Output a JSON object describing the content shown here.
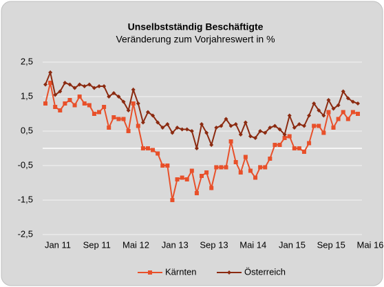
{
  "chart_data": {
    "type": "line",
    "title": "Unselbstständig Beschäftigte",
    "subtitle": "Veränderung zum Vorjahreswert in %",
    "categories": [
      "Jan 11",
      null,
      null,
      null,
      null,
      null,
      null,
      null,
      "Sep 11",
      null,
      null,
      null,
      null,
      null,
      null,
      null,
      "Mai 12",
      null,
      null,
      null,
      null,
      null,
      null,
      null,
      "Jan 13",
      null,
      null,
      null,
      null,
      null,
      null,
      null,
      "Sep 13",
      null,
      null,
      null,
      null,
      null,
      null,
      null,
      "Mai 14",
      null,
      null,
      null,
      null,
      null,
      null,
      null,
      "Jan 15",
      null,
      null,
      null,
      null,
      null,
      null,
      null,
      "Sep 15",
      null,
      null,
      null,
      null,
      null,
      null,
      null,
      "Mai 16"
    ],
    "series": [
      {
        "name": "Kärnten",
        "color": "#e8502a",
        "marker": "square",
        "values": [
          1.3,
          1.9,
          1.2,
          1.1,
          1.3,
          1.4,
          1.25,
          1.5,
          1.3,
          1.25,
          1.0,
          1.05,
          1.2,
          0.6,
          0.9,
          0.85,
          0.85,
          0.5,
          1.3,
          0.65,
          0,
          0,
          -0.05,
          -0.15,
          -0.5,
          -0.5,
          -1.5,
          -0.9,
          -0.85,
          -0.9,
          -0.65,
          -1.3,
          -0.8,
          -0.7,
          -1.15,
          -0.55,
          -0.55,
          -0.55,
          0.2,
          -0.4,
          -0.7,
          -0.25,
          -0.65,
          -0.85,
          -0.55,
          -0.55,
          -0.3,
          0.1,
          0.1,
          0.3,
          0.35,
          0,
          0,
          -0.1,
          0.15,
          0.65,
          0.65,
          0.45,
          1.05,
          0.6,
          0.85,
          1.05,
          0.85,
          1.05,
          1.0
        ]
      },
      {
        "name": "Österreich",
        "color": "#8b2a10",
        "marker": "diamond",
        "values": [
          1.85,
          2.2,
          1.55,
          1.65,
          1.9,
          1.85,
          1.75,
          1.85,
          1.8,
          1.85,
          1.75,
          1.8,
          1.8,
          1.5,
          1.6,
          1.5,
          1.35,
          1.1,
          1.7,
          1.3,
          0.75,
          1.05,
          0.95,
          0.75,
          0.6,
          0.7,
          0.45,
          0.6,
          0.55,
          0.55,
          0.5,
          0,
          0.7,
          0.45,
          0.1,
          0.6,
          0.65,
          0.85,
          0.65,
          0.7,
          0.4,
          0.75,
          0.35,
          0.3,
          0.5,
          0.45,
          0.6,
          0.65,
          0.55,
          0.4,
          0.95,
          0.6,
          0.7,
          0.65,
          0.95,
          1.3,
          1.1,
          0.95,
          1.4,
          1.15,
          1.25,
          1.65,
          1.45,
          1.35,
          1.3
        ]
      }
    ],
    "ylim": [
      -2.5,
      2.5
    ],
    "yticks": [
      {
        "value": -2.5,
        "label": "-2,5"
      },
      {
        "value": -1.5,
        "label": "-1,5"
      },
      {
        "value": -0.5,
        "label": "-0,5"
      },
      {
        "value": 0.5,
        "label": "0,5"
      },
      {
        "value": 1.5,
        "label": "1,5"
      },
      {
        "value": 2.5,
        "label": "2,5"
      }
    ],
    "grid": true,
    "legend": "bottom"
  }
}
